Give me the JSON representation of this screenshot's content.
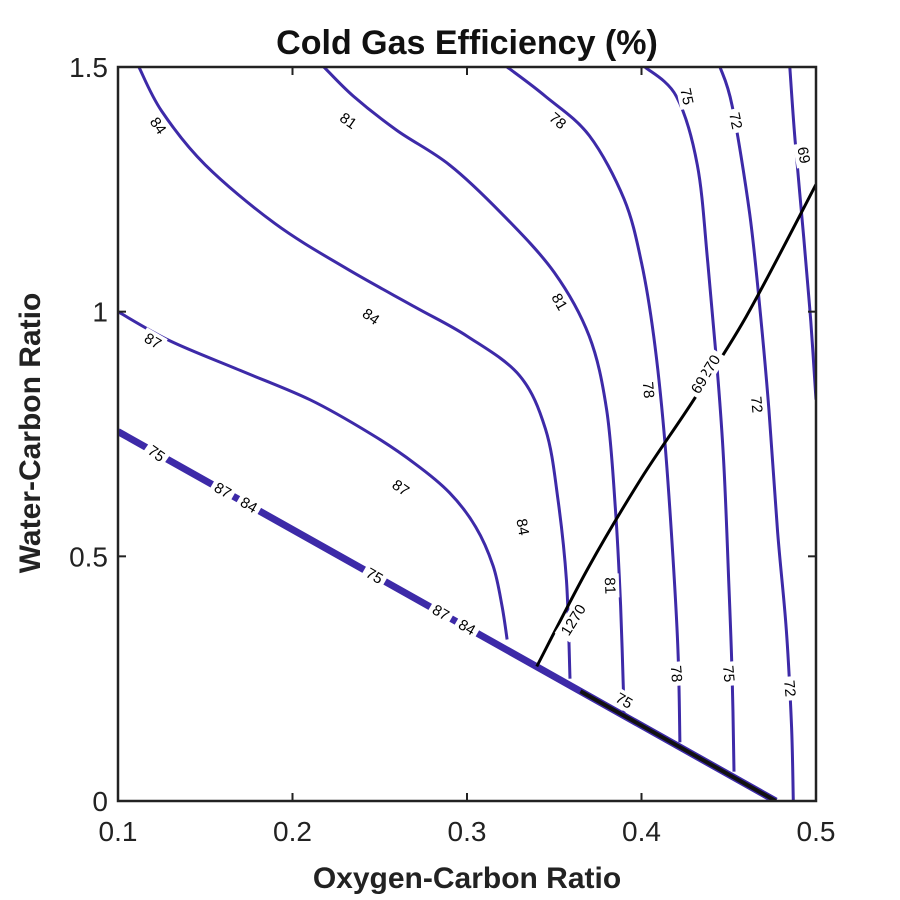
{
  "chart_data": {
    "type": "contour",
    "title": "Cold Gas Efficiency (%)",
    "xlabel": "Oxygen-Carbon Ratio",
    "ylabel": "Water-Carbon Ratio",
    "xlim": [
      0.1,
      0.5
    ],
    "ylim": [
      0,
      1.5
    ],
    "xticks": [
      0.1,
      0.2,
      0.3,
      0.4,
      0.5
    ],
    "xtick_labels": [
      "0.1",
      "0.2",
      "0.3",
      "0.4",
      "0.5"
    ],
    "yticks": [
      0,
      0.5,
      1,
      1.5
    ],
    "ytick_labels": [
      "0",
      "0.5",
      "1",
      "1.5"
    ],
    "grid": false,
    "colors": {
      "efficiency_contours": "#3d2aa8",
      "temperature_contour": "#000000"
    },
    "boundary_line": {
      "points": [
        [
          0.1,
          0.755
        ],
        [
          0.477,
          0.0
        ]
      ]
    },
    "contours": [
      {
        "level": "87",
        "points": [
          [
            0.1,
            1.0
          ],
          [
            0.13,
            0.94
          ],
          [
            0.17,
            0.88
          ],
          [
            0.21,
            0.82
          ],
          [
            0.245,
            0.75
          ],
          [
            0.27,
            0.69
          ],
          [
            0.29,
            0.63
          ],
          [
            0.305,
            0.56
          ],
          [
            0.315,
            0.48
          ],
          [
            0.32,
            0.4
          ],
          [
            0.323,
            0.33
          ]
        ]
      },
      {
        "level": "84",
        "points": [
          [
            0.112,
            1.5
          ],
          [
            0.125,
            1.41
          ],
          [
            0.15,
            1.3
          ],
          [
            0.19,
            1.18
          ],
          [
            0.23,
            1.09
          ],
          [
            0.27,
            1.01
          ],
          [
            0.3,
            0.95
          ],
          [
            0.33,
            0.87
          ],
          [
            0.345,
            0.76
          ],
          [
            0.352,
            0.62
          ],
          [
            0.357,
            0.45
          ],
          [
            0.359,
            0.25
          ]
        ]
      },
      {
        "level": "81",
        "points": [
          [
            0.218,
            1.5
          ],
          [
            0.235,
            1.44
          ],
          [
            0.26,
            1.37
          ],
          [
            0.29,
            1.3
          ],
          [
            0.32,
            1.2
          ],
          [
            0.35,
            1.08
          ],
          [
            0.37,
            0.95
          ],
          [
            0.38,
            0.8
          ],
          [
            0.385,
            0.6
          ],
          [
            0.388,
            0.4
          ],
          [
            0.39,
            0.18
          ]
        ]
      },
      {
        "level": "78",
        "points": [
          [
            0.323,
            1.5
          ],
          [
            0.345,
            1.44
          ],
          [
            0.37,
            1.36
          ],
          [
            0.39,
            1.23
          ],
          [
            0.4,
            1.1
          ],
          [
            0.407,
            0.95
          ],
          [
            0.413,
            0.75
          ],
          [
            0.418,
            0.5
          ],
          [
            0.421,
            0.3
          ],
          [
            0.422,
            0.12
          ]
        ]
      },
      {
        "level": "75",
        "points": [
          [
            0.402,
            1.5
          ],
          [
            0.42,
            1.44
          ],
          [
            0.432,
            1.3
          ],
          [
            0.438,
            1.1
          ],
          [
            0.443,
            0.9
          ],
          [
            0.447,
            0.7
          ],
          [
            0.45,
            0.45
          ],
          [
            0.452,
            0.25
          ],
          [
            0.453,
            0.06
          ]
        ]
      },
      {
        "level": "72",
        "points": [
          [
            0.445,
            1.5
          ],
          [
            0.452,
            1.42
          ],
          [
            0.462,
            1.2
          ],
          [
            0.468,
            1.0
          ],
          [
            0.473,
            0.8
          ],
          [
            0.478,
            0.55
          ],
          [
            0.483,
            0.35
          ],
          [
            0.486,
            0.15
          ],
          [
            0.487,
            0.0
          ]
        ]
      },
      {
        "level": "69",
        "points": [
          [
            0.485,
            1.5
          ],
          [
            0.488,
            1.35
          ],
          [
            0.493,
            1.15
          ],
          [
            0.497,
            0.98
          ],
          [
            0.5,
            0.82
          ]
        ]
      }
    ],
    "temperature_contour": {
      "level": "1270",
      "points": [
        [
          0.34,
          0.275
        ],
        [
          0.37,
          0.48
        ],
        [
          0.4,
          0.66
        ],
        [
          0.43,
          0.82
        ],
        [
          0.46,
          0.99
        ],
        [
          0.5,
          1.26
        ]
      ]
    },
    "contour_labels": [
      {
        "text": "84",
        "x": 0.123,
        "y": 1.38,
        "angle": 55
      },
      {
        "text": "81",
        "x": 0.232,
        "y": 1.39,
        "angle": 35
      },
      {
        "text": "78",
        "x": 0.352,
        "y": 1.39,
        "angle": 40
      },
      {
        "text": "75",
        "x": 0.426,
        "y": 1.44,
        "angle": 78
      },
      {
        "text": "72",
        "x": 0.454,
        "y": 1.39,
        "angle": 78
      },
      {
        "text": "69",
        "x": 0.493,
        "y": 1.32,
        "angle": 80
      },
      {
        "text": "87",
        "x": 0.12,
        "y": 0.94,
        "angle": 30
      },
      {
        "text": "84",
        "x": 0.245,
        "y": 0.99,
        "angle": 35
      },
      {
        "text": "81",
        "x": 0.353,
        "y": 1.02,
        "angle": 60
      },
      {
        "text": "87",
        "x": 0.262,
        "y": 0.64,
        "angle": 35
      },
      {
        "text": "84",
        "x": 0.332,
        "y": 0.56,
        "angle": 80
      },
      {
        "text": "78",
        "x": 0.404,
        "y": 0.84,
        "angle": 85
      },
      {
        "text": "72",
        "x": 0.466,
        "y": 0.81,
        "angle": 85
      },
      {
        "text": "81",
        "x": 0.382,
        "y": 0.44,
        "angle": 88
      },
      {
        "text": "1270",
        "x": 0.361,
        "y": 0.37,
        "angle": -58
      },
      {
        "text": "1270",
        "x": 0.438,
        "y": 0.88,
        "angle": -58
      },
      {
        "text": "69",
        "x": 0.433,
        "y": 0.85,
        "angle": -58
      },
      {
        "text": "78",
        "x": 0.42,
        "y": 0.26,
        "angle": 85
      },
      {
        "text": "75",
        "x": 0.45,
        "y": 0.26,
        "angle": 85
      },
      {
        "text": "72",
        "x": 0.485,
        "y": 0.23,
        "angle": 85
      },
      {
        "text": "75",
        "x": 0.122,
        "y": 0.71,
        "angle": 35
      },
      {
        "text": "87",
        "x": 0.16,
        "y": 0.635,
        "angle": 30
      },
      {
        "text": "84",
        "x": 0.175,
        "y": 0.605,
        "angle": 30
      },
      {
        "text": "75",
        "x": 0.247,
        "y": 0.46,
        "angle": 30
      },
      {
        "text": "87",
        "x": 0.285,
        "y": 0.385,
        "angle": 30
      },
      {
        "text": "84",
        "x": 0.3,
        "y": 0.355,
        "angle": 30
      },
      {
        "text": "75",
        "x": 0.39,
        "y": 0.205,
        "angle": 30
      }
    ]
  }
}
